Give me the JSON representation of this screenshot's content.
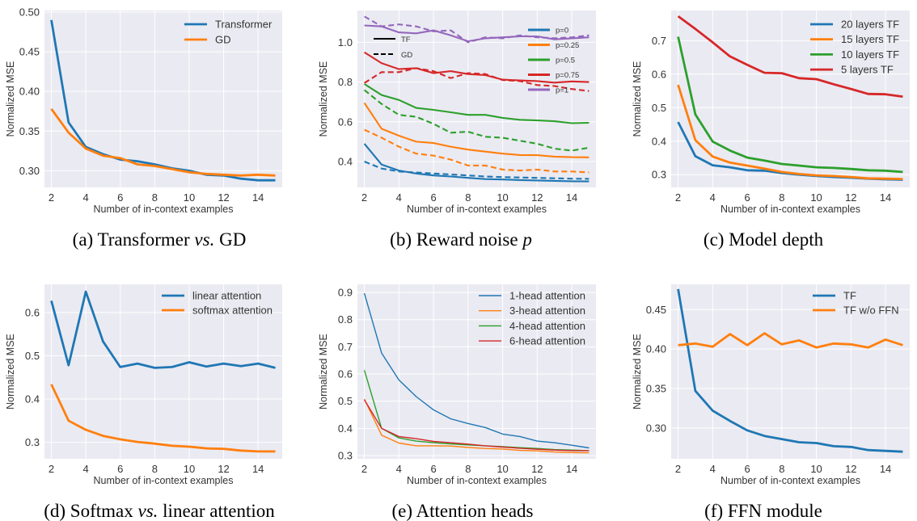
{
  "chart_data": [
    {
      "type": "line",
      "caption": [
        {
          "text": "(a) Transformer ",
          "italic": false
        },
        {
          "text": "vs.",
          "italic": true
        },
        {
          "text": " GD",
          "italic": false
        }
      ],
      "xlabel": "Number of in-context examples",
      "ylabel": "Normalized MSE",
      "x": [
        2,
        3,
        4,
        5,
        6,
        7,
        8,
        9,
        10,
        11,
        12,
        13,
        14,
        15
      ],
      "xlim": [
        1.6,
        15.4
      ],
      "ylim": [
        0.279,
        0.502
      ],
      "xticks": [
        2,
        4,
        6,
        8,
        10,
        12,
        14
      ],
      "yticks": [
        0.3,
        0.35,
        0.4,
        0.45,
        0.5
      ],
      "ytick_labels": [
        "0.30",
        "0.35",
        "0.40",
        "0.45",
        "0.50"
      ],
      "grid": true,
      "legend": "upper right",
      "series": [
        {
          "name": "Transformer",
          "color": "#1f77b4",
          "values": [
            0.49,
            0.361,
            0.33,
            0.321,
            0.314,
            0.312,
            0.308,
            0.303,
            0.3,
            0.295,
            0.294,
            0.29,
            0.288,
            0.288
          ]
        },
        {
          "name": "GD",
          "color": "#ff7f0e",
          "values": [
            0.378,
            0.348,
            0.328,
            0.319,
            0.316,
            0.308,
            0.306,
            0.302,
            0.298,
            0.296,
            0.295,
            0.294,
            0.295,
            0.294
          ]
        }
      ]
    },
    {
      "type": "line",
      "caption": [
        {
          "text": "(b) Reward noise ",
          "italic": false
        },
        {
          "text": "p",
          "italic": true
        }
      ],
      "xlabel": "Number of in-context examples",
      "ylabel": "Normalized MSE",
      "x": [
        2,
        3,
        4,
        5,
        6,
        7,
        8,
        9,
        10,
        11,
        12,
        13,
        14,
        15
      ],
      "xlim": [
        1.6,
        15.4
      ],
      "ylim": [
        0.27,
        1.16
      ],
      "xticks": [
        2,
        4,
        6,
        8,
        10,
        12,
        14
      ],
      "yticks": [
        0.4,
        0.6,
        0.8,
        1.0
      ],
      "ytick_labels": [
        "0.4",
        "0.6",
        "0.8",
        "1.0"
      ],
      "grid": true,
      "legend": "upper right",
      "style_legend": [
        {
          "label": "TF",
          "dashed": false
        },
        {
          "label": "GD",
          "dashed": true
        }
      ],
      "series": [
        {
          "name": "p=0",
          "color": "#1f77b4",
          "TF": [
            0.49,
            0.385,
            0.355,
            0.34,
            0.33,
            0.325,
            0.318,
            0.312,
            0.31,
            0.307,
            0.305,
            0.303,
            0.301,
            0.3
          ],
          "GD": [
            0.4,
            0.365,
            0.35,
            0.345,
            0.34,
            0.335,
            0.33,
            0.325,
            0.322,
            0.32,
            0.318,
            0.316,
            0.314,
            0.313
          ]
        },
        {
          "name": "p=0.25",
          "color": "#ff7f0e",
          "TF": [
            0.695,
            0.565,
            0.53,
            0.5,
            0.493,
            0.475,
            0.46,
            0.45,
            0.44,
            0.433,
            0.432,
            0.425,
            0.422,
            0.421
          ],
          "GD": [
            0.56,
            0.52,
            0.475,
            0.44,
            0.43,
            0.41,
            0.38,
            0.38,
            0.36,
            0.355,
            0.36,
            0.35,
            0.35,
            0.345
          ]
        },
        {
          "name": "p=0.5",
          "color": "#2ca02c",
          "TF": [
            0.79,
            0.735,
            0.71,
            0.67,
            0.66,
            0.648,
            0.635,
            0.635,
            0.62,
            0.61,
            0.607,
            0.603,
            0.593,
            0.595
          ],
          "GD": [
            0.76,
            0.69,
            0.635,
            0.625,
            0.59,
            0.545,
            0.55,
            0.525,
            0.52,
            0.505,
            0.49,
            0.465,
            0.455,
            0.47
          ]
        },
        {
          "name": "p=0.75",
          "color": "#d62728",
          "TF": [
            0.95,
            0.895,
            0.865,
            0.87,
            0.845,
            0.855,
            0.84,
            0.835,
            0.812,
            0.808,
            0.805,
            0.797,
            0.803,
            0.8
          ],
          "GD": [
            0.795,
            0.85,
            0.85,
            0.87,
            0.855,
            0.82,
            0.845,
            0.84,
            0.81,
            0.805,
            0.785,
            0.78,
            0.765,
            0.755
          ]
        },
        {
          "name": "p=1",
          "color": "#9467bd",
          "TF": [
            1.085,
            1.08,
            1.05,
            1.045,
            1.06,
            1.035,
            1.005,
            1.02,
            1.025,
            1.03,
            1.03,
            1.015,
            1.02,
            1.025
          ],
          "GD": [
            1.13,
            1.08,
            1.09,
            1.08,
            1.055,
            1.06,
            1.0,
            1.025,
            1.02,
            1.035,
            1.025,
            1.02,
            1.025,
            1.035
          ]
        }
      ]
    },
    {
      "type": "line",
      "caption": [
        {
          "text": "(c) Model depth",
          "italic": false
        }
      ],
      "xlabel": "Number of in-context examples",
      "ylabel": "Normalized MSE",
      "x": [
        2,
        3,
        4,
        5,
        6,
        7,
        8,
        9,
        10,
        11,
        12,
        13,
        14,
        15
      ],
      "xlim": [
        1.6,
        15.4
      ],
      "ylim": [
        0.262,
        0.79
      ],
      "xticks": [
        2,
        4,
        6,
        8,
        10,
        12,
        14
      ],
      "yticks": [
        0.3,
        0.4,
        0.5,
        0.6,
        0.7
      ],
      "ytick_labels": [
        "0.3",
        "0.4",
        "0.5",
        "0.6",
        "0.7"
      ],
      "grid": true,
      "legend": "upper right",
      "series": [
        {
          "name": "20 layers TF",
          "color": "#1f77b4",
          "values": [
            0.457,
            0.355,
            0.328,
            0.322,
            0.313,
            0.312,
            0.305,
            0.3,
            0.296,
            0.293,
            0.291,
            0.288,
            0.286,
            0.285
          ]
        },
        {
          "name": "15 layers TF",
          "color": "#ff7f0e",
          "values": [
            0.568,
            0.403,
            0.354,
            0.336,
            0.327,
            0.318,
            0.308,
            0.302,
            0.298,
            0.296,
            0.293,
            0.289,
            0.288,
            0.287
          ]
        },
        {
          "name": "10 layers TF",
          "color": "#2ca02c",
          "values": [
            0.712,
            0.48,
            0.399,
            0.372,
            0.351,
            0.342,
            0.332,
            0.327,
            0.322,
            0.32,
            0.317,
            0.313,
            0.312,
            0.308
          ]
        },
        {
          "name": "5 layers TF",
          "color": "#d62728",
          "values": [
            0.773,
            0.735,
            0.695,
            0.653,
            0.628,
            0.604,
            0.603,
            0.588,
            0.585,
            0.57,
            0.556,
            0.541,
            0.54,
            0.533
          ]
        }
      ]
    },
    {
      "type": "line",
      "caption": [
        {
          "text": "(d) Softmax ",
          "italic": false
        },
        {
          "text": "vs.",
          "italic": true
        },
        {
          "text": " linear attention",
          "italic": false
        }
      ],
      "xlabel": "Number of in-context examples",
      "ylabel": "Normalized MSE",
      "x": [
        2,
        3,
        4,
        5,
        6,
        7,
        8,
        9,
        10,
        11,
        12,
        13,
        14,
        15
      ],
      "xlim": [
        1.6,
        15.4
      ],
      "ylim": [
        0.262,
        0.665
      ],
      "xticks": [
        2,
        4,
        6,
        8,
        10,
        12,
        14
      ],
      "yticks": [
        0.3,
        0.4,
        0.5,
        0.6
      ],
      "ytick_labels": [
        "0.3",
        "0.4",
        "0.5",
        "0.6"
      ],
      "grid": true,
      "legend": "upper right",
      "series": [
        {
          "name": "linear attention",
          "color": "#1f77b4",
          "values": [
            0.627,
            0.478,
            0.648,
            0.533,
            0.474,
            0.482,
            0.472,
            0.474,
            0.485,
            0.475,
            0.482,
            0.476,
            0.482,
            0.472
          ]
        },
        {
          "name": "softmax attention",
          "color": "#ff7f0e",
          "values": [
            0.434,
            0.35,
            0.329,
            0.315,
            0.307,
            0.301,
            0.297,
            0.292,
            0.29,
            0.286,
            0.285,
            0.281,
            0.279,
            0.279
          ]
        }
      ]
    },
    {
      "type": "line",
      "caption": [
        {
          "text": "(e) Attention heads",
          "italic": false
        }
      ],
      "xlabel": "Number of in-context examples",
      "ylabel": "Normalized MSE",
      "x": [
        2,
        3,
        4,
        5,
        6,
        7,
        8,
        9,
        10,
        11,
        12,
        13,
        14,
        15
      ],
      "xlim": [
        1.6,
        15.4
      ],
      "ylim": [
        0.288,
        0.93
      ],
      "xticks": [
        2,
        4,
        6,
        8,
        10,
        12,
        14
      ],
      "yticks": [
        0.3,
        0.4,
        0.5,
        0.6,
        0.7,
        0.8,
        0.9
      ],
      "ytick_labels": [
        "0.3",
        "0.4",
        "0.5",
        "0.6",
        "0.7",
        "0.8",
        "0.9"
      ],
      "grid": true,
      "legend": "upper right",
      "series": [
        {
          "name": "1-head attention",
          "color": "#1f77b4",
          "values": [
            0.897,
            0.677,
            0.578,
            0.517,
            0.468,
            0.435,
            0.418,
            0.403,
            0.379,
            0.37,
            0.353,
            0.347,
            0.338,
            0.328
          ]
        },
        {
          "name": "3-head attention",
          "color": "#ff7f0e",
          "values": [
            0.508,
            0.375,
            0.346,
            0.336,
            0.336,
            0.335,
            0.33,
            0.326,
            0.324,
            0.319,
            0.317,
            0.313,
            0.311,
            0.31
          ]
        },
        {
          "name": "4-head attention",
          "color": "#2ca02c",
          "values": [
            0.614,
            0.4,
            0.365,
            0.353,
            0.347,
            0.343,
            0.339,
            0.336,
            0.333,
            0.329,
            0.326,
            0.322,
            0.32,
            0.318
          ]
        },
        {
          "name": "6-head attention",
          "color": "#d62728",
          "values": [
            0.505,
            0.4,
            0.37,
            0.362,
            0.352,
            0.347,
            0.342,
            0.336,
            0.331,
            0.327,
            0.323,
            0.32,
            0.318,
            0.318
          ]
        }
      ]
    },
    {
      "type": "line",
      "caption": [
        {
          "text": "(f) FFN module",
          "italic": false
        }
      ],
      "xlabel": "Number of in-context examples",
      "ylabel": "Normalized MSE",
      "x": [
        2,
        3,
        4,
        5,
        6,
        7,
        8,
        9,
        10,
        11,
        12,
        13,
        14,
        15
      ],
      "xlim": [
        1.6,
        15.4
      ],
      "ylim": [
        0.261,
        0.482
      ],
      "xticks": [
        2,
        4,
        6,
        8,
        10,
        12,
        14
      ],
      "yticks": [
        0.3,
        0.35,
        0.4,
        0.45
      ],
      "ytick_labels": [
        "0.30",
        "0.35",
        "0.40",
        "0.45"
      ],
      "grid": true,
      "legend": "upper right",
      "series": [
        {
          "name": "TF",
          "color": "#1f77b4",
          "values": [
            0.476,
            0.347,
            0.322,
            0.309,
            0.297,
            0.29,
            0.286,
            0.282,
            0.281,
            0.277,
            0.276,
            0.272,
            0.271,
            0.27
          ]
        },
        {
          "name": "TF w/o FFN",
          "color": "#ff7f0e",
          "values": [
            0.405,
            0.407,
            0.403,
            0.419,
            0.405,
            0.42,
            0.406,
            0.411,
            0.402,
            0.407,
            0.406,
            0.402,
            0.412,
            0.405
          ]
        }
      ]
    }
  ]
}
